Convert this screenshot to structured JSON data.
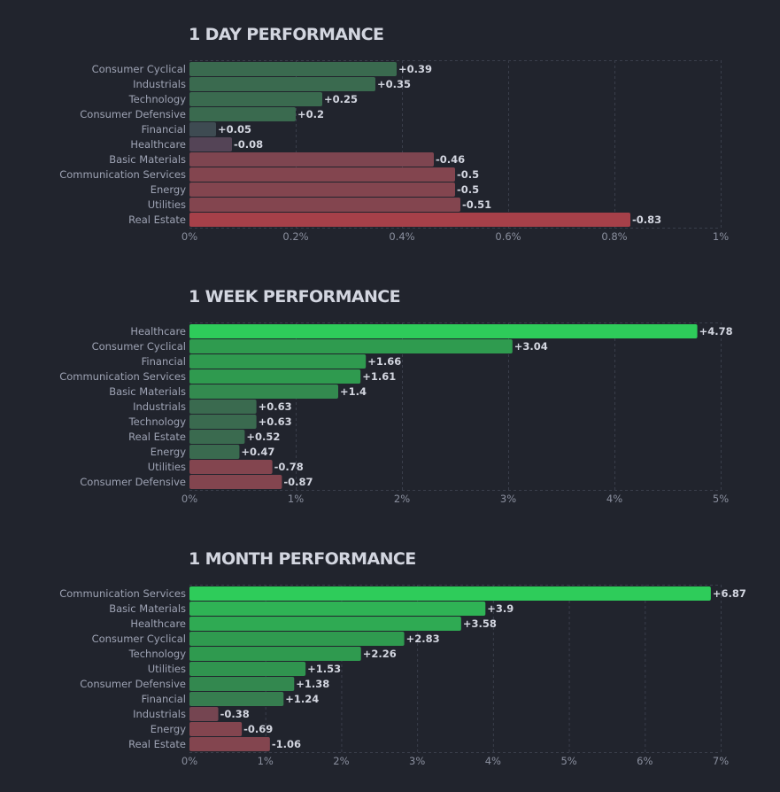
{
  "chart_data": [
    {
      "type": "bar",
      "orientation": "horizontal",
      "title": "1 DAY PERFORMANCE",
      "categories": [
        "Consumer Cyclical",
        "Industrials",
        "Technology",
        "Consumer Defensive",
        "Financial",
        "Healthcare",
        "Basic Materials",
        "Communication Services",
        "Energy",
        "Utilities",
        "Real Estate"
      ],
      "values": [
        0.39,
        0.35,
        0.25,
        0.2,
        0.05,
        -0.08,
        -0.46,
        -0.5,
        -0.5,
        -0.51,
        -0.83
      ],
      "value_labels": [
        "+0.39",
        "+0.35",
        "+0.25",
        "+0.2",
        "+0.05",
        "-0.08",
        "-0.46",
        "-0.5",
        "-0.5",
        "-0.51",
        "-0.83"
      ],
      "xlim": [
        0,
        1
      ],
      "xticks": [
        0,
        0.2,
        0.4,
        0.6,
        0.8,
        1
      ],
      "xtick_labels": [
        "0%",
        "0.2%",
        "0.4%",
        "0.6%",
        "0.8%",
        "1%"
      ],
      "xlabel": "",
      "ylabel": "",
      "grid": true,
      "bar_scale": "absolute value"
    },
    {
      "type": "bar",
      "orientation": "horizontal",
      "title": "1 WEEK PERFORMANCE",
      "categories": [
        "Healthcare",
        "Consumer Cyclical",
        "Financial",
        "Communication Services",
        "Basic Materials",
        "Industrials",
        "Technology",
        "Real Estate",
        "Energy",
        "Utilities",
        "Consumer Defensive"
      ],
      "values": [
        4.78,
        3.04,
        1.66,
        1.61,
        1.4,
        0.63,
        0.63,
        0.52,
        0.47,
        -0.78,
        -0.87
      ],
      "value_labels": [
        "+4.78",
        "+3.04",
        "+1.66",
        "+1.61",
        "+1.4",
        "+0.63",
        "+0.63",
        "+0.52",
        "+0.47",
        "-0.78",
        "-0.87"
      ],
      "xlim": [
        0,
        5
      ],
      "xticks": [
        0,
        1,
        2,
        3,
        4,
        5
      ],
      "xtick_labels": [
        "0%",
        "1%",
        "2%",
        "3%",
        "4%",
        "5%"
      ],
      "xlabel": "",
      "ylabel": "",
      "grid": true,
      "bar_scale": "absolute value"
    },
    {
      "type": "bar",
      "orientation": "horizontal",
      "title": "1 MONTH PERFORMANCE",
      "categories": [
        "Communication Services",
        "Basic Materials",
        "Healthcare",
        "Consumer Cyclical",
        "Technology",
        "Utilities",
        "Consumer Defensive",
        "Financial",
        "Industrials",
        "Energy",
        "Real Estate"
      ],
      "values": [
        6.87,
        3.9,
        3.58,
        2.83,
        2.26,
        1.53,
        1.38,
        1.24,
        -0.38,
        -0.69,
        -1.06
      ],
      "value_labels": [
        "+6.87",
        "+3.9",
        "+3.58",
        "+2.83",
        "+2.26",
        "+1.53",
        "+1.38",
        "+1.24",
        "-0.38",
        "-0.69",
        "-1.06"
      ],
      "xlim": [
        0,
        7
      ],
      "xticks": [
        0,
        1,
        2,
        3,
        4,
        5,
        6,
        7
      ],
      "xtick_labels": [
        "0%",
        "1%",
        "2%",
        "3%",
        "4%",
        "5%",
        "6%",
        "7%"
      ],
      "xlabel": "",
      "ylabel": "",
      "grid": true,
      "bar_scale": "absolute value"
    }
  ],
  "colors": {
    "background": "#21242d",
    "grid": "#3a3e4b",
    "positive_strong": "#2ecc5a",
    "positive_mid": "#2f9a4f",
    "positive_weak": "#3a6a4f",
    "neutral_pos": "#3e4b52",
    "neutral_neg": "#544456",
    "negative_weak": "#83454f",
    "negative_strong": "#b13f47"
  }
}
